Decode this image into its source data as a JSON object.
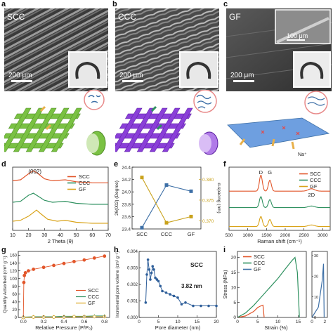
{
  "panels": {
    "a": {
      "letter": "a",
      "sample": "SCC",
      "scale": "200 μm"
    },
    "b": {
      "letter": "b",
      "sample": "CCC",
      "scale": "200 μm"
    },
    "c": {
      "letter": "c",
      "sample": "GF",
      "scale": "200 μm",
      "inset_scale": "100 μm"
    },
    "d": {
      "letter": "d",
      "xlabel": "2 Theta (θ)",
      "peak_label": "(002)",
      "xticks": [
        "10",
        "20",
        "30",
        "40",
        "50",
        "60",
        "70"
      ],
      "legend": [
        "SCC",
        "CCC",
        "GF"
      ]
    },
    "e": {
      "letter": "e",
      "ylabel_left": "2θ(002) (Degree)",
      "ylabel_right": "d-spacing (nm)",
      "yticks_left": [
        "23.4",
        "23.6",
        "23.8",
        "24.0",
        "24.2",
        "24.4"
      ],
      "yticks_right": [
        "0.370",
        "0.375",
        "0.380"
      ],
      "categories": [
        "SCC",
        "CCC",
        "GF"
      ]
    },
    "f": {
      "letter": "f",
      "xlabel": "Raman shift (cm⁻¹)",
      "peaks": [
        "D",
        "G",
        "2D"
      ],
      "xticks": [
        "500",
        "1000",
        "1500",
        "2000",
        "2500",
        "3000"
      ],
      "legend": [
        "SCC",
        "CCC",
        "GF"
      ]
    },
    "g": {
      "letter": "g",
      "ylabel": "Quantity Adsorbed (cm³ g⁻¹)",
      "xlabel": "Relative Pressure (P/P₀)",
      "yticks": [
        "0",
        "20",
        "40",
        "60",
        "80",
        "100",
        "120",
        "140",
        "160"
      ],
      "xticks": [
        "0.0",
        "0.2",
        "0.4",
        "0.6",
        "0.8"
      ],
      "legend": [
        "SCC",
        "CCC",
        "GF"
      ]
    },
    "h": {
      "letter": "h",
      "ylabel": "Incremental pore voleme (cm³ g⁻¹)",
      "xlabel": "Pore diameter (nm)",
      "yticks": [
        "0.000",
        "0.001",
        "0.002",
        "0.003",
        "0.004"
      ],
      "xticks": [
        "0",
        "5",
        "10",
        "15",
        "20"
      ],
      "sample": "SCC",
      "annotation": "3.82 nm"
    },
    "i": {
      "letter": "i",
      "ylabel": "Stress (MPa)",
      "xlabel": "Strain (%)",
      "yticks": [
        "0",
        "5",
        "10",
        "15",
        "20"
      ],
      "xticks": [
        "0",
        "5",
        "10",
        "15"
      ],
      "yticks_b": [
        "0",
        "10",
        "20",
        "30"
      ],
      "xticks_b": [
        "0",
        "2"
      ],
      "legend": [
        "SCC",
        "CCC",
        "GF"
      ]
    }
  },
  "colors": {
    "scc": "#e2562a",
    "ccc": "#2f9160",
    "gf": "#d9a319",
    "e_left": "#3d6fa6",
    "e_right": "#c9a21c",
    "i_gf": "#3d6fa6"
  },
  "chart_data": [
    {
      "type": "line",
      "panel": "d",
      "xlabel": "2 Theta (θ)",
      "xlim": [
        10,
        70
      ],
      "series": [
        {
          "name": "SCC",
          "x": [
            10,
            15,
            20,
            23,
            26,
            30,
            35,
            43,
            50,
            60,
            70
          ],
          "y": [
            0.2,
            0.25,
            0.55,
            0.7,
            0.55,
            0.3,
            0.2,
            0.25,
            0.15,
            0.1,
            0.1
          ]
        },
        {
          "name": "CCC",
          "x": [
            10,
            15,
            20,
            23,
            26,
            30,
            35,
            43,
            50,
            60,
            70
          ],
          "y": [
            0.2,
            0.25,
            0.55,
            0.65,
            0.5,
            0.3,
            0.2,
            0.25,
            0.15,
            0.1,
            0.1
          ]
        },
        {
          "name": "GF",
          "x": [
            10,
            15,
            20,
            25,
            28,
            32,
            38,
            43,
            50,
            60,
            70
          ],
          "y": [
            0.2,
            0.25,
            0.45,
            0.75,
            0.55,
            0.3,
            0.2,
            0.25,
            0.15,
            0.1,
            0.1
          ]
        }
      ]
    },
    {
      "type": "line",
      "panel": "e",
      "categories": [
        "SCC",
        "CCC",
        "GF"
      ],
      "ylim_left": [
        23.4,
        24.4
      ],
      "ylim_right": [
        0.368,
        0.383
      ],
      "series": [
        {
          "axis": "left",
          "values": [
            23.42,
            24.11,
            24.01
          ]
        },
        {
          "axis": "right",
          "values": [
            0.3805,
            0.3695,
            0.371
          ]
        }
      ]
    },
    {
      "type": "line",
      "panel": "f",
      "xlabel": "Raman shift (cm⁻¹)",
      "xlim": [
        500,
        3200
      ],
      "series": [
        {
          "name": "SCC",
          "peaks": [
            {
              "x": 1350,
              "h": 0.8
            },
            {
              "x": 1590,
              "h": 0.55
            },
            {
              "x": 2700,
              "h": 0.12
            }
          ]
        },
        {
          "name": "CCC",
          "peaks": [
            {
              "x": 1350,
              "h": 0.55
            },
            {
              "x": 1590,
              "h": 0.4
            },
            {
              "x": 2700,
              "h": 0.08
            }
          ]
        },
        {
          "name": "GF",
          "peaks": [
            {
              "x": 1350,
              "h": 0.5
            },
            {
              "x": 1590,
              "h": 0.35
            },
            {
              "x": 2700,
              "h": 0.08
            }
          ]
        }
      ]
    },
    {
      "type": "scatter",
      "panel": "g",
      "xlabel": "Relative Pressure (P/P₀)",
      "ylabel": "Quantity Adsorbed (cm³ g⁻¹)",
      "xlim": [
        -0.05,
        0.85
      ],
      "ylim": [
        0,
        170
      ],
      "series": [
        {
          "name": "SCC",
          "x": [
            0.0,
            0.005,
            0.01,
            0.02,
            0.05,
            0.1,
            0.2,
            0.3,
            0.4,
            0.5,
            0.6,
            0.7,
            0.8
          ],
          "y": [
            0,
            90,
            108,
            115,
            120,
            124,
            129,
            134,
            139,
            144,
            148,
            153,
            158
          ]
        },
        {
          "name": "CCC",
          "x": [
            0.0,
            0.1,
            0.2,
            0.3,
            0.4,
            0.5,
            0.6,
            0.7,
            0.8
          ],
          "y": [
            1,
            2,
            2,
            2,
            3,
            3,
            3,
            4,
            4
          ]
        },
        {
          "name": "GF",
          "x": [
            0.0,
            0.1,
            0.2,
            0.3,
            0.4,
            0.5,
            0.6,
            0.7,
            0.8
          ],
          "y": [
            0,
            1,
            1,
            1,
            1,
            2,
            2,
            2,
            2
          ]
        }
      ]
    },
    {
      "type": "line",
      "panel": "h",
      "xlabel": "Pore diameter (nm)",
      "xlim": [
        0,
        20
      ],
      "ylim": [
        0,
        0.004
      ],
      "series": [
        {
          "name": "SCC",
          "x": [
            1.7,
            2.0,
            2.3,
            2.6,
            2.9,
            3.2,
            3.5,
            3.82,
            4.2,
            4.6,
            5.0,
            5.5,
            6.0,
            7.0,
            8.0,
            9.0,
            10.0,
            11.0,
            12.0,
            14.0,
            16.0,
            18.0,
            20.0
          ],
          "y": [
            0.0009,
            0.0026,
            0.0035,
            0.0029,
            0.0023,
            0.0027,
            0.0031,
            0.0029,
            0.0024,
            0.0023,
            0.0022,
            0.0019,
            0.0016,
            0.0015,
            0.0014,
            0.0013,
            0.0012,
            0.0008,
            0.0009,
            0.0007,
            0.0007,
            0.0007,
            0.0007
          ]
        }
      ]
    },
    {
      "type": "line",
      "panel": "i",
      "xlabel": "Strain (%)",
      "ylabel": "Stress (MPa)",
      "xlim": [
        0,
        17
      ],
      "ylim": [
        0,
        22
      ],
      "series": [
        {
          "name": "SCC",
          "x": [
            0,
            2,
            4,
            5,
            6,
            6.3,
            6.6
          ],
          "y": [
            0,
            0.5,
            2,
            3.3,
            4.0,
            4.1,
            0
          ]
        },
        {
          "name": "CCC",
          "x": [
            0,
            2,
            4,
            6,
            8,
            10,
            12,
            13.5,
            14.2,
            14.8,
            15.3
          ],
          "y": [
            0,
            1.5,
            4,
            7,
            10,
            13,
            16.5,
            19,
            20,
            15,
            0
          ]
        },
        {
          "name": "GF",
          "x": [
            0,
            1,
            1.6,
            1.8,
            1.9
          ],
          "y": [
            0,
            5,
            18,
            26,
            0
          ]
        }
      ]
    }
  ]
}
